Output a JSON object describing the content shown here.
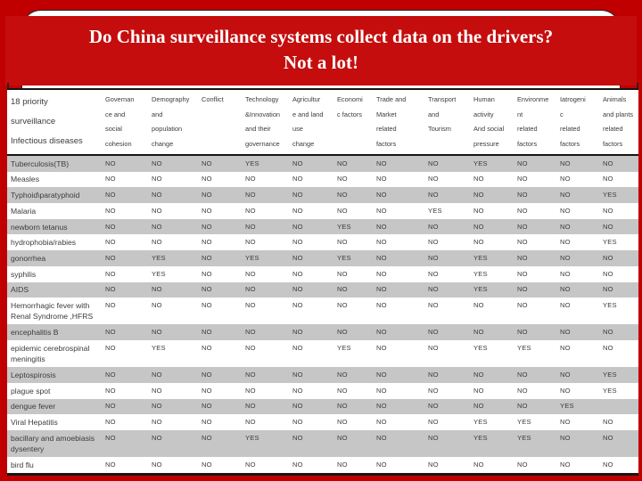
{
  "slide": {
    "title_line1": "Do China surveillance systems collect data on the drivers?",
    "title_line2": "Not a lot!",
    "colors": {
      "frame_red": "#c00000",
      "banner_red": "#c50d0d",
      "row_gray": "#c6c6c6",
      "table_text": "#3c3c3c",
      "border_black": "#151515",
      "title_text": "#ffffff"
    }
  },
  "table": {
    "name_header": "18 priority\nsurveillance\nInfectious diseases",
    "columns": [
      "Governan\nce and\nsocial\ncohesion",
      "Demography\nand\npopulation\nchange",
      "Conflict",
      "Technology\n&Innovation\nand their\ngovernance",
      "Agricultur\ne and land\nuse\nchange",
      "Economi\nc factors",
      "Trade and\nMarket\nrelated\nfactors",
      "Transport\nand\nTourism",
      "Human\nactivity\nAnd social\npressure",
      "Environme\nnt\nrelated\nfactors",
      "Iatrogeni\nc\nrelated\nfactors",
      "Animals\nand plants\nrelated\nfactors"
    ],
    "rows": [
      {
        "name": "Tuberculosis(TB)",
        "values": [
          "NO",
          "NO",
          "NO",
          "YES",
          "NO",
          "NO",
          "NO",
          "NO",
          "YES",
          "NO",
          "NO",
          "NO"
        ]
      },
      {
        "name": "Measles",
        "values": [
          "NO",
          "NO",
          "NO",
          "NO",
          "NO",
          "NO",
          "NO",
          "NO",
          "NO",
          "NO",
          "NO",
          "NO"
        ]
      },
      {
        "name": "Typhoid\\paratyphoid",
        "values": [
          "NO",
          "NO",
          "NO",
          "NO",
          "NO",
          "NO",
          "NO",
          "NO",
          "NO",
          "NO",
          "NO",
          "YES"
        ]
      },
      {
        "name": "Malaria",
        "values": [
          "NO",
          "NO",
          "NO",
          "NO",
          "NO",
          "NO",
          "NO",
          "YES",
          "NO",
          "NO",
          "NO",
          "NO"
        ]
      },
      {
        "name": "newborn tetanus",
        "values": [
          "NO",
          "NO",
          "NO",
          "NO",
          "NO",
          "YES",
          "NO",
          "NO",
          "NO",
          "NO",
          "NO",
          "NO"
        ]
      },
      {
        "name": "hydrophobia/rabies",
        "values": [
          "NO",
          "NO",
          "NO",
          "NO",
          "NO",
          "NO",
          "NO",
          "NO",
          "NO",
          "NO",
          "NO",
          "YES"
        ]
      },
      {
        "name": "gonorrhea",
        "values": [
          "NO",
          "YES",
          "NO",
          "YES",
          "NO",
          "YES",
          "NO",
          "NO",
          "YES",
          "NO",
          "NO",
          "NO"
        ]
      },
      {
        "name": "syphilis",
        "values": [
          "NO",
          "YES",
          "NO",
          "NO",
          "NO",
          "NO",
          "NO",
          "NO",
          "YES",
          "NO",
          "NO",
          "NO"
        ]
      },
      {
        "name": "AIDS",
        "values": [
          "NO",
          "NO",
          "NO",
          "NO",
          "NO",
          "NO",
          "NO",
          "NO",
          "YES",
          "NO",
          "NO",
          "NO"
        ]
      },
      {
        "name": "Hemorrhagic fever with\nRenal Syndrome ,HFRS",
        "values": [
          "NO",
          "NO",
          "NO",
          "NO",
          "NO",
          "NO",
          "NO",
          "NO",
          "NO",
          "NO",
          "NO",
          "YES"
        ]
      },
      {
        "name": "encephalitis B",
        "values": [
          "NO",
          "NO",
          "NO",
          "NO",
          "NO",
          "NO",
          "NO",
          "NO",
          "NO",
          "NO",
          "NO",
          "NO"
        ]
      },
      {
        "name": "epidemic cerebrospinal\nmeningitis",
        "values": [
          "NO",
          "YES",
          "NO",
          "NO",
          "NO",
          "YES",
          "NO",
          "NO",
          "YES",
          "YES",
          "NO",
          "NO"
        ]
      },
      {
        "name": "Leptospirosis",
        "values": [
          "NO",
          "NO",
          "NO",
          "NO",
          "NO",
          "NO",
          "NO",
          "NO",
          "NO",
          "NO",
          "NO",
          "YES"
        ]
      },
      {
        "name": "plague spot",
        "values": [
          "NO",
          "NO",
          "NO",
          "NO",
          "NO",
          "NO",
          "NO",
          "NO",
          "NO",
          "NO",
          "NO",
          "YES"
        ]
      },
      {
        "name": "dengue fever",
        "values": [
          "NO",
          "NO",
          "NO",
          "NO",
          "NO",
          "NO",
          "NO",
          "NO",
          "NO",
          "NO",
          "YES",
          ""
        ]
      },
      {
        "name": "Viral Hepatitis",
        "values": [
          "NO",
          "NO",
          "NO",
          "NO",
          "NO",
          "NO",
          "NO",
          "NO",
          "YES",
          "YES",
          "NO",
          "NO"
        ]
      },
      {
        "name": "bacillary and amoebiasis\ndysentery",
        "values": [
          "NO",
          "NO",
          "NO",
          "YES",
          "NO",
          "NO",
          "NO",
          "NO",
          "YES",
          "YES",
          "NO",
          "NO"
        ]
      },
      {
        "name": "bird flu",
        "values": [
          "NO",
          "NO",
          "NO",
          "NO",
          "NO",
          "NO",
          "NO",
          "NO",
          "NO",
          "NO",
          "NO",
          "NO"
        ]
      }
    ]
  }
}
